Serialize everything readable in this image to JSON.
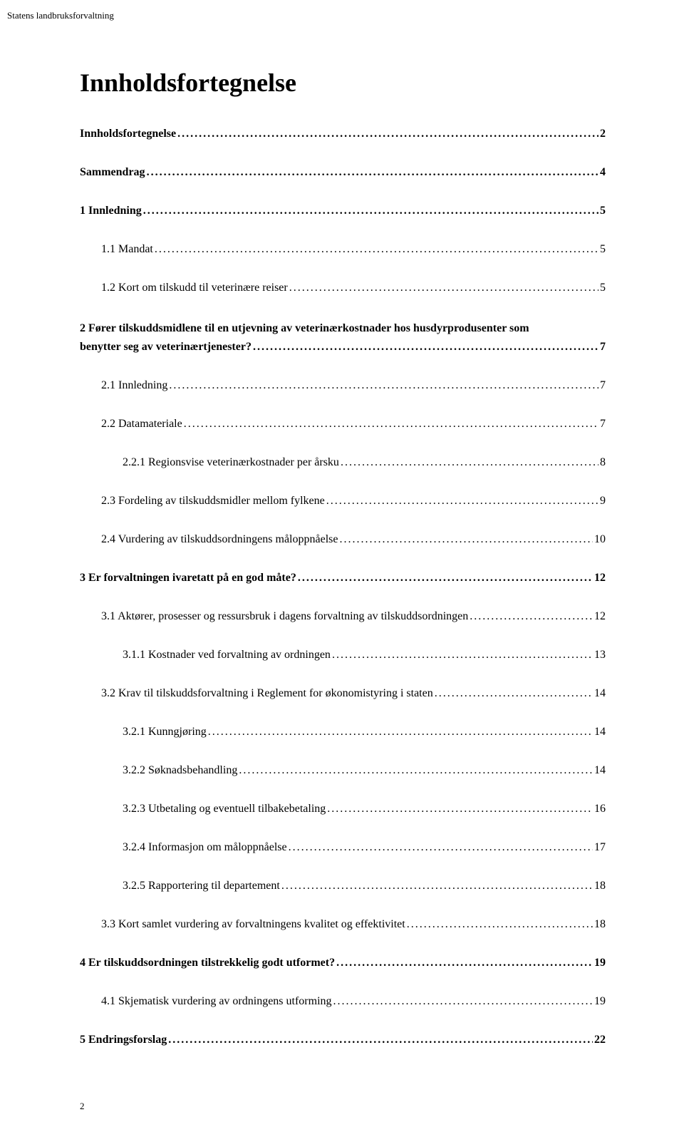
{
  "header_text": "Statens landbruksforvaltning",
  "title": "Innholdsfortegnelse",
  "page_number": "2",
  "text_color": "#000000",
  "background_color": "#ffffff",
  "title_fontsize": 36,
  "body_fontsize": 16,
  "header_fontsize": 13,
  "toc": [
    {
      "label": "Innholdsfortegnelse",
      "page": "2",
      "level": 0
    },
    {
      "label": "Sammendrag",
      "page": "4",
      "level": 0
    },
    {
      "label": "1  Innledning",
      "page": "5",
      "level": 0
    },
    {
      "label": "1.1  Mandat",
      "page": "5",
      "level": 1
    },
    {
      "label": "1.2  Kort om tilskudd til veterinære reiser",
      "page": "5",
      "level": 1
    },
    {
      "label": "2  Fører tilskuddsmidlene til en utjevning av veterinærkostnader hos husdyrprodusenter som benytter seg av veterinærtjenester?",
      "page": "7",
      "level": 0,
      "multiline": true
    },
    {
      "label": "2.1  Innledning",
      "page": "7",
      "level": 1
    },
    {
      "label": "2.2  Datamateriale",
      "page": "7",
      "level": 1
    },
    {
      "label": "2.2.1  Regionsvise veterinærkostnader per årsku",
      "page": "8",
      "level": 2
    },
    {
      "label": "2.3  Fordeling av tilskuddsmidler mellom fylkene",
      "page": "9",
      "level": 1
    },
    {
      "label": "2.4  Vurdering av tilskuddsordningens måloppnåelse",
      "page": "10",
      "level": 1
    },
    {
      "label": "3  Er forvaltningen ivaretatt på en god måte? ",
      "page": "12",
      "level": 0
    },
    {
      "label": "3.1  Aktører, prosesser og ressursbruk i dagens forvaltning av tilskuddsordningen",
      "page": "12",
      "level": 1
    },
    {
      "label": "3.1.1  Kostnader ved forvaltning av ordningen",
      "page": "13",
      "level": 2
    },
    {
      "label": "3.2  Krav til tilskuddsforvaltning i Reglement for økonomistyring i staten",
      "page": "14",
      "level": 1
    },
    {
      "label": "3.2.1  Kunngjøring",
      "page": "14",
      "level": 2
    },
    {
      "label": "3.2.2  Søknadsbehandling",
      "page": "14",
      "level": 2
    },
    {
      "label": "3.2.3  Utbetaling og eventuell tilbakebetaling",
      "page": "16",
      "level": 2
    },
    {
      "label": "3.2.4  Informasjon om måloppnåelse",
      "page": "17",
      "level": 2
    },
    {
      "label": "3.2.5  Rapportering til departement",
      "page": "18",
      "level": 2
    },
    {
      "label": "3.3  Kort samlet vurdering av forvaltningens kvalitet og effektivitet",
      "page": "18",
      "level": 1
    },
    {
      "label": "4  Er tilskuddsordningen tilstrekkelig godt utformet?",
      "page": "19",
      "level": 0
    },
    {
      "label": "4.1  Skjematisk vurdering av ordningens utforming",
      "page": "19",
      "level": 1
    },
    {
      "label": "5  Endringsforslag",
      "page": "22",
      "level": 0
    }
  ]
}
